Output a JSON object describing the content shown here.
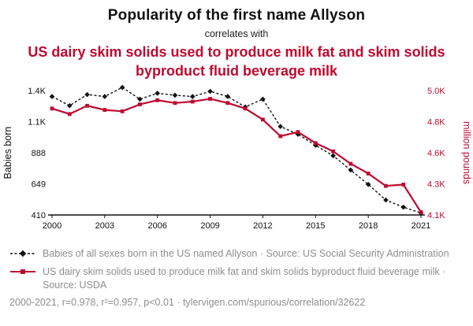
{
  "header": {
    "title": "Popularity of the first name Allyson",
    "subtitle": "correlates with",
    "red_title": "US dairy skim solids used to produce milk fat and skim solids byproduct fluid beverage milk"
  },
  "colors": {
    "accent_red": "#bf0a30",
    "series_black": "#111111",
    "muted_text": "#8e8e8e"
  },
  "chart_data": {
    "type": "line",
    "x": [
      2000,
      2001,
      2002,
      2003,
      2004,
      2005,
      2006,
      2007,
      2008,
      2009,
      2010,
      2011,
      2012,
      2013,
      2014,
      2015,
      2016,
      2017,
      2018,
      2019,
      2020,
      2021
    ],
    "x_ticks": [
      2000,
      2003,
      2006,
      2009,
      2012,
      2015,
      2018,
      2021
    ],
    "series": [
      {
        "name": "Babies of all sexes born in the US named Allyson",
        "axis": "left",
        "color": "#111111",
        "style": "dashed",
        "marker": "diamond",
        "values": [
          1320,
          1250,
          1335,
          1320,
          1390,
          1300,
          1345,
          1330,
          1320,
          1360,
          1320,
          1240,
          1300,
          1090,
          1030,
          945,
          865,
          755,
          645,
          525,
          470,
          425
        ]
      },
      {
        "name": "US dairy skim solids used to produce milk fat and skim solids byproduct fluid beverage milk",
        "axis": "right",
        "color": "#bf0a30",
        "style": "solid",
        "marker": "square",
        "values": [
          4870,
          4830,
          4890,
          4860,
          4850,
          4900,
          4930,
          4910,
          4920,
          4940,
          4910,
          4870,
          4790,
          4670,
          4700,
          4620,
          4560,
          4470,
          4400,
          4310,
          4320,
          4120
        ]
      }
    ],
    "left_axis": {
      "label": "Babies born",
      "ticks": [
        "1.4K",
        "1.1K",
        "888",
        "649",
        "410"
      ],
      "min": 410,
      "max": 1366
    },
    "right_axis": {
      "label": "million pounds",
      "ticks": [
        "5.0K",
        "4.8K",
        "4.6K",
        "4.3K",
        "4.1K"
      ],
      "min": 4100,
      "max": 5000
    },
    "grid": false,
    "legend_position": "below"
  },
  "legend": {
    "items": [
      {
        "label": "Babies of all sexes born in the US named Allyson · Source: US Social Security Administration"
      },
      {
        "label": "US dairy skim solids used to produce milk fat and skim solids byproduct fluid beverage milk · Source: USDA"
      }
    ]
  },
  "footer": {
    "text": "2000-2021, r=0.978, r²=0.957, p<0.01 · tylervigen.com/spurious/correlation/32622"
  }
}
